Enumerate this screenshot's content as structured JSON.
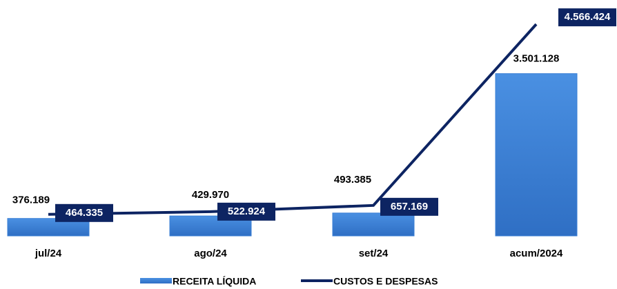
{
  "chart_data": {
    "type": "bar+line",
    "categories": [
      "jul/24",
      "ago/24",
      "set/24",
      "acum/2024"
    ],
    "ylim": [
      0,
      5000000
    ],
    "series": [
      {
        "name": "RECEITA LÍQUIDA",
        "type": "bar",
        "color": "#3a7fd5",
        "values": [
          376189,
          429970,
          493385,
          3501128
        ],
        "value_labels": [
          "376.189",
          "429.970",
          "493.385",
          "3.501.128"
        ]
      },
      {
        "name": "CUSTOS E DESPESAS",
        "type": "line",
        "color": "#0d2462",
        "values": [
          464335,
          522924,
          657169,
          4566424
        ],
        "value_labels": [
          "464.335",
          "522.924",
          "657.169",
          "4.566.424"
        ]
      }
    ]
  }
}
